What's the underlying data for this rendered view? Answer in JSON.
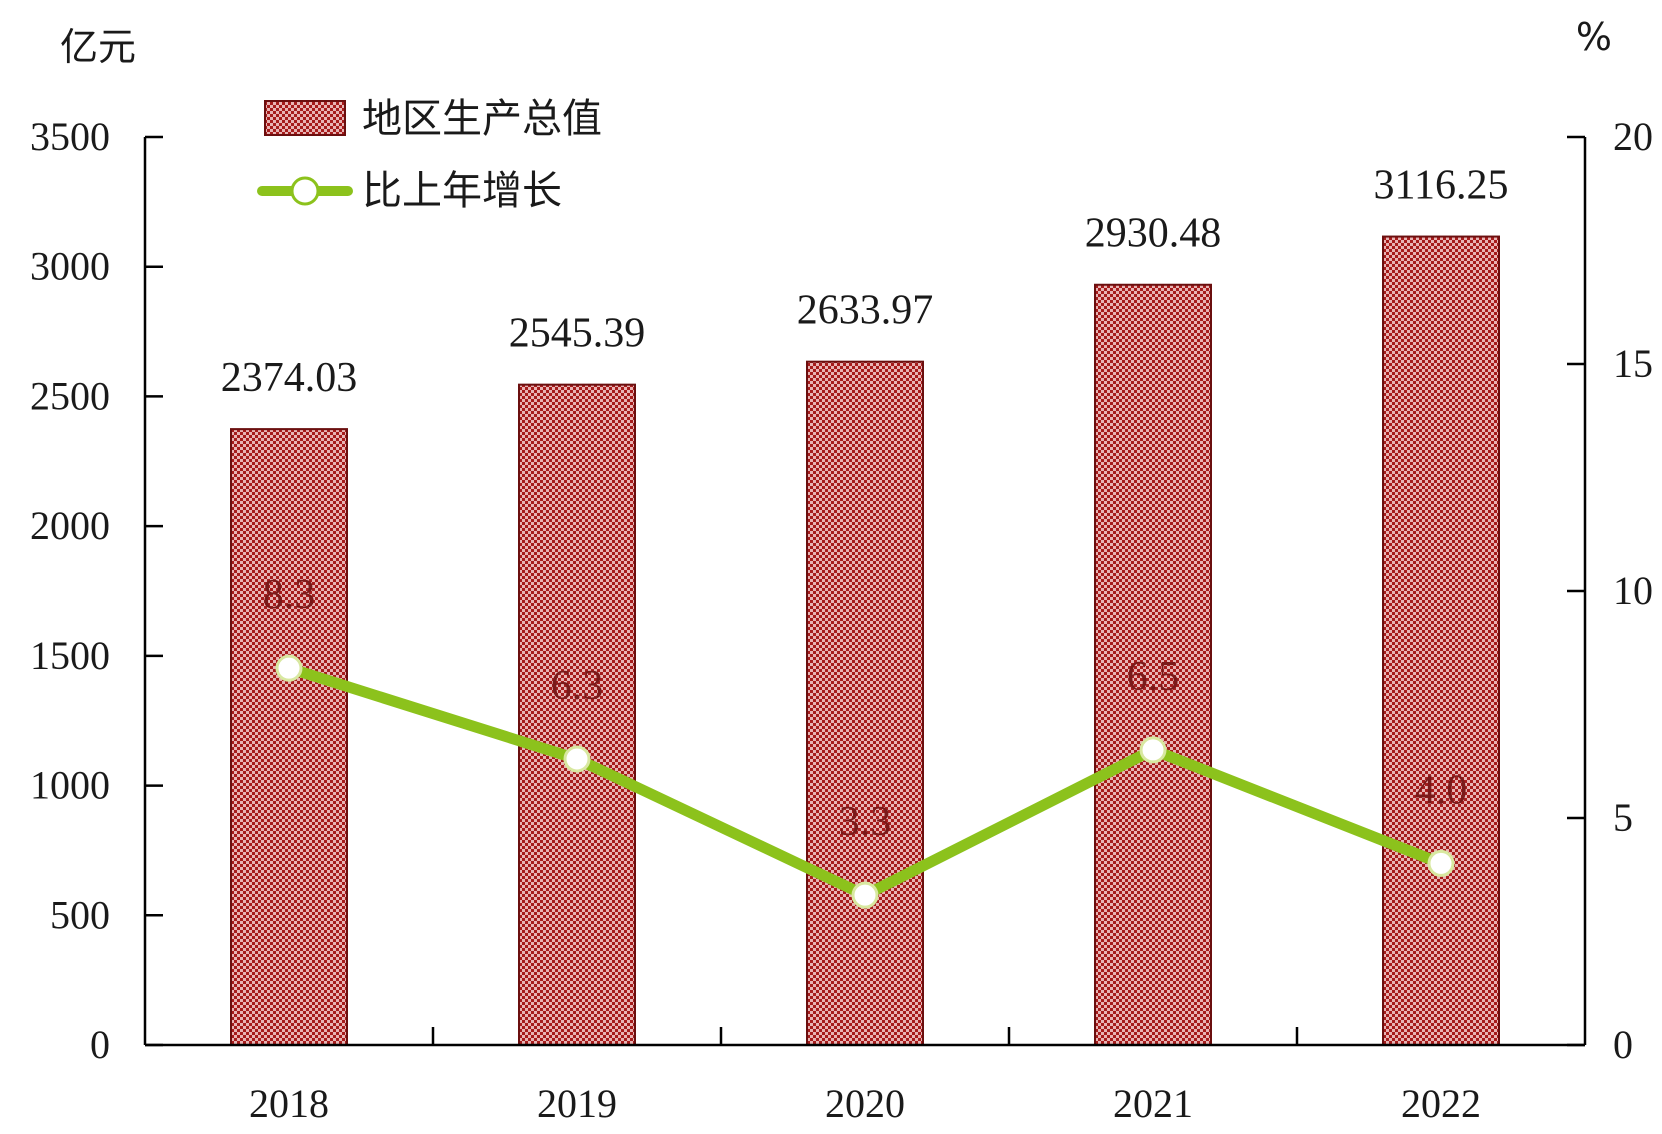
{
  "chart_data": {
    "type": "bar",
    "categories": [
      "2018",
      "2019",
      "2020",
      "2021",
      "2022"
    ],
    "series": [
      {
        "name": "地区生产总值",
        "type": "bar",
        "axis": "left",
        "values": [
          2374.03,
          2545.39,
          2633.97,
          2930.48,
          3116.25
        ],
        "labels": [
          "2374.03",
          "2545.39",
          "2633.97",
          "2930.48",
          "3116.25"
        ],
        "color": "#a61c1c"
      },
      {
        "name": "比上年增长",
        "type": "line",
        "axis": "right",
        "values": [
          8.3,
          6.3,
          3.3,
          6.5,
          4.0
        ],
        "labels": [
          "8.3",
          "6.3",
          "3.3",
          "6.5",
          "4.0"
        ],
        "color": "#8cc21c"
      }
    ],
    "left_axis": {
      "unit": "亿元",
      "ylim": [
        0,
        3500
      ],
      "ticks": [
        "0",
        "500",
        "1000",
        "1500",
        "2000",
        "2500",
        "3000",
        "3500"
      ]
    },
    "right_axis": {
      "unit": "%",
      "ylim": [
        0,
        20
      ],
      "ticks": [
        "0",
        "5",
        "10",
        "15",
        "20"
      ]
    },
    "legend": {
      "position": "top-left",
      "items": [
        {
          "label": "地区生产总值",
          "marker": "bar"
        },
        {
          "label": "比上年增长",
          "marker": "line"
        }
      ]
    },
    "grid": false
  }
}
